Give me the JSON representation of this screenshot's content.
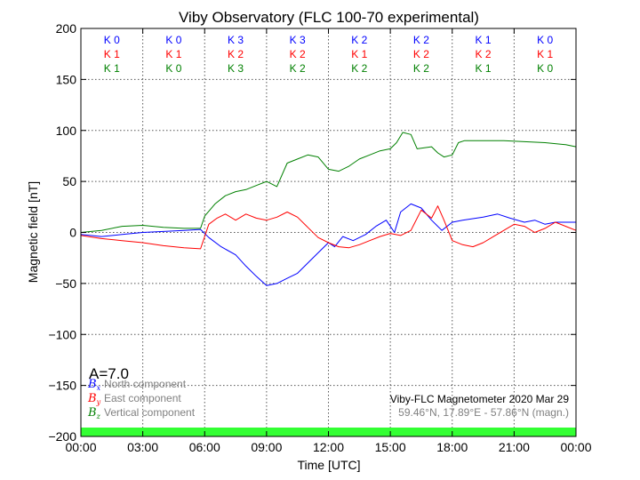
{
  "chart_data": {
    "type": "line",
    "title": "Viby Observatory (FLC 100-70 experimental)",
    "xlabel": "Time [UTC]",
    "ylabel": "Magnetic field [nT]",
    "x_ticks": [
      "00:00",
      "03:00",
      "06:00",
      "09:00",
      "12:00",
      "15:00",
      "18:00",
      "21:00",
      "00:00"
    ],
    "y_ticks": [
      200,
      150,
      100,
      50,
      0,
      -50,
      -100,
      -150,
      -200
    ],
    "ylim": [
      -200,
      200
    ],
    "xlim_hours": [
      0,
      24
    ],
    "grid": true,
    "k_index_rows": [
      {
        "color": "#0000ff",
        "labels": [
          "K 0",
          "K 0",
          "K 3",
          "K 3",
          "K 2",
          "K 2",
          "K 1",
          "K 0"
        ]
      },
      {
        "color": "#ff0000",
        "labels": [
          "K 1",
          "K 1",
          "K 2",
          "K 2",
          "K 1",
          "K 2",
          "K 2",
          "K 1"
        ]
      },
      {
        "color": "#008000",
        "labels": [
          "K 1",
          "K 0",
          "K 3",
          "K 2",
          "K 2",
          "K 2",
          "K 1",
          "K 0"
        ]
      }
    ],
    "a_index": "A=7.0",
    "legend": [
      {
        "symbol": "B",
        "sub": "x",
        "label": "North component",
        "color": "#0000ff"
      },
      {
        "symbol": "B",
        "sub": "y",
        "label": "East component",
        "color": "#ff0000"
      },
      {
        "symbol": "B",
        "sub": "z",
        "label": "Vertical component",
        "color": "#008000"
      }
    ],
    "info_line1": "Viby-FLC Magnetometer 2020 Mar 29",
    "info_line2": "59.46°N, 17.89°E - 57.86°N (magn.)",
    "status_bar_color": "#33ff33",
    "series": [
      {
        "color": "#0000ff",
        "points": [
          [
            0,
            -2
          ],
          [
            1,
            -4
          ],
          [
            2,
            -2
          ],
          [
            3,
            0
          ],
          [
            4,
            1
          ],
          [
            5,
            2
          ],
          [
            5.8,
            3
          ],
          [
            6.2,
            -5
          ],
          [
            6.8,
            -14
          ],
          [
            7.5,
            -22
          ],
          [
            8,
            -33
          ],
          [
            8.5,
            -43
          ],
          [
            9,
            -52
          ],
          [
            9.5,
            -50
          ],
          [
            10,
            -45
          ],
          [
            10.5,
            -40
          ],
          [
            11,
            -30
          ],
          [
            11.5,
            -20
          ],
          [
            12,
            -10
          ],
          [
            12.3,
            -14
          ],
          [
            12.7,
            -4
          ],
          [
            13.2,
            -8
          ],
          [
            13.8,
            -2
          ],
          [
            14.3,
            6
          ],
          [
            14.8,
            12
          ],
          [
            15.2,
            0
          ],
          [
            15.5,
            20
          ],
          [
            16,
            28
          ],
          [
            16.5,
            24
          ],
          [
            17,
            12
          ],
          [
            17.5,
            2
          ],
          [
            18,
            10
          ],
          [
            18.5,
            12
          ],
          [
            19.5,
            15
          ],
          [
            20.2,
            18
          ],
          [
            20.8,
            14
          ],
          [
            21.5,
            10
          ],
          [
            22,
            12
          ],
          [
            22.5,
            8
          ],
          [
            23,
            10
          ],
          [
            24,
            10
          ]
        ]
      },
      {
        "color": "#ff0000",
        "points": [
          [
            0,
            -3
          ],
          [
            1,
            -6
          ],
          [
            2,
            -8
          ],
          [
            3,
            -10
          ],
          [
            4,
            -13
          ],
          [
            5,
            -15
          ],
          [
            5.8,
            -16
          ],
          [
            6.2,
            8
          ],
          [
            6.6,
            14
          ],
          [
            7,
            18
          ],
          [
            7.5,
            12
          ],
          [
            8,
            18
          ],
          [
            8.5,
            14
          ],
          [
            9,
            12
          ],
          [
            9.5,
            15
          ],
          [
            10,
            20
          ],
          [
            10.5,
            15
          ],
          [
            11,
            5
          ],
          [
            11.5,
            -5
          ],
          [
            12,
            -10
          ],
          [
            12.5,
            -14
          ],
          [
            13,
            -15
          ],
          [
            13.5,
            -12
          ],
          [
            14,
            -8
          ],
          [
            14.5,
            -4
          ],
          [
            15,
            -1
          ],
          [
            15.5,
            -3
          ],
          [
            16,
            2
          ],
          [
            16.5,
            22
          ],
          [
            17,
            14
          ],
          [
            17.3,
            26
          ],
          [
            17.6,
            12
          ],
          [
            18,
            -8
          ],
          [
            18.5,
            -12
          ],
          [
            19,
            -14
          ],
          [
            19.5,
            -10
          ],
          [
            20,
            -4
          ],
          [
            20.5,
            2
          ],
          [
            21,
            8
          ],
          [
            21.5,
            6
          ],
          [
            22,
            0
          ],
          [
            22.5,
            4
          ],
          [
            23,
            10
          ],
          [
            23.5,
            6
          ],
          [
            24,
            2
          ]
        ]
      },
      {
        "color": "#008000",
        "points": [
          [
            0,
            0
          ],
          [
            1,
            2
          ],
          [
            2,
            6
          ],
          [
            3,
            7
          ],
          [
            4,
            5
          ],
          [
            5,
            4
          ],
          [
            5.8,
            4
          ],
          [
            6,
            16
          ],
          [
            6.5,
            28
          ],
          [
            7,
            36
          ],
          [
            7.5,
            40
          ],
          [
            8,
            42
          ],
          [
            8.5,
            46
          ],
          [
            9,
            50
          ],
          [
            9.5,
            45
          ],
          [
            10,
            68
          ],
          [
            10.5,
            72
          ],
          [
            11,
            76
          ],
          [
            11.5,
            74
          ],
          [
            12,
            62
          ],
          [
            12.5,
            60
          ],
          [
            13,
            65
          ],
          [
            13.5,
            72
          ],
          [
            14,
            76
          ],
          [
            14.5,
            80
          ],
          [
            15,
            82
          ],
          [
            15.3,
            88
          ],
          [
            15.6,
            98
          ],
          [
            16,
            96
          ],
          [
            16.3,
            82
          ],
          [
            17,
            84
          ],
          [
            17.3,
            78
          ],
          [
            17.6,
            74
          ],
          [
            18,
            76
          ],
          [
            18.3,
            88
          ],
          [
            18.6,
            90
          ],
          [
            19.5,
            90
          ],
          [
            20.5,
            90
          ],
          [
            21.5,
            89
          ],
          [
            22.5,
            88
          ],
          [
            23.5,
            86
          ],
          [
            24,
            84
          ]
        ]
      }
    ]
  }
}
